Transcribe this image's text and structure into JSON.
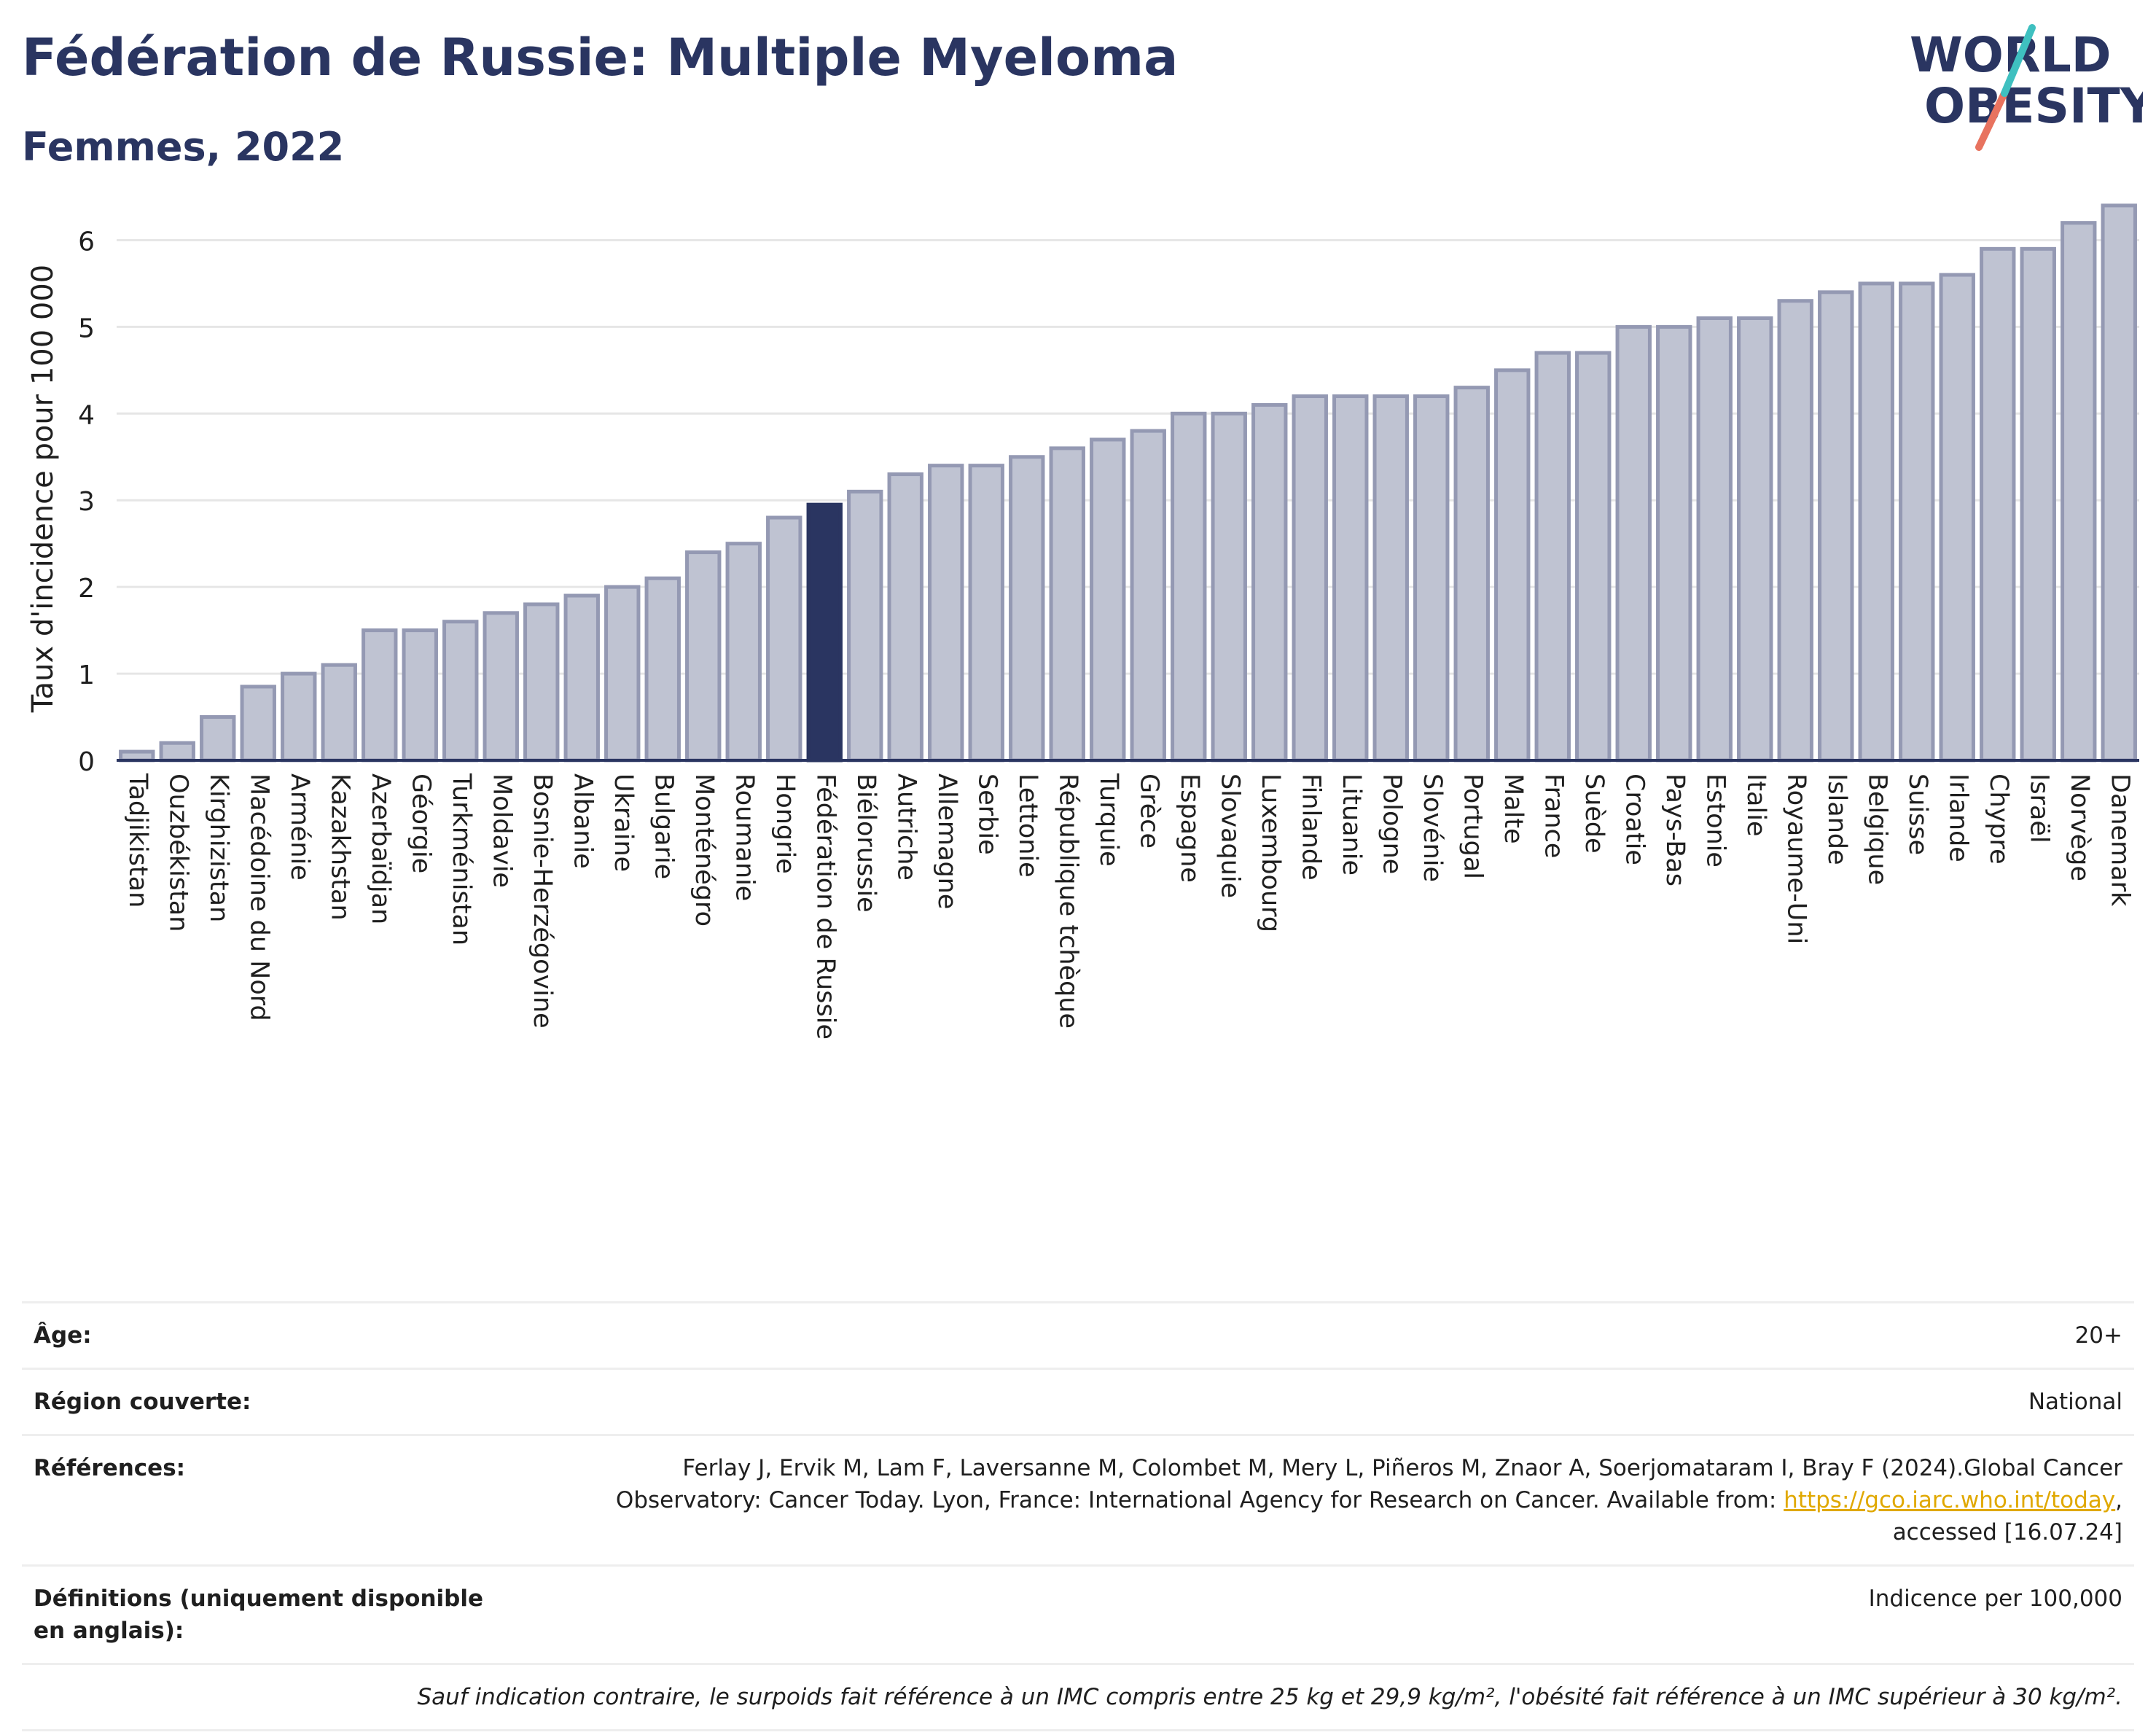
{
  "header": {
    "title": "Fédération de Russie: Multiple Myeloma",
    "subtitle": "Femmes, 2022"
  },
  "logo": {
    "line1": "WORLD",
    "line2": "OBESITY"
  },
  "colors": {
    "bar": "#bfc3d2",
    "bar_stroke": "#9499b3",
    "highlight": "#2a3561",
    "title": "#2a3561"
  },
  "chart_data": {
    "type": "bar",
    "ylabel": "Taux d'incidence pour 100 000",
    "xlabel": "",
    "ylim": [
      0,
      6.5
    ],
    "yticks": [
      0,
      1,
      2,
      3,
      4,
      5,
      6
    ],
    "grid": true,
    "highlight": "Fédération de Russie",
    "categories": [
      "Tadjikistan",
      "Ouzbékistan",
      "Kirghizistan",
      "Macédoine du Nord",
      "Arménie",
      "Kazakhstan",
      "Azerbaïdjan",
      "Géorgie",
      "Turkménistan",
      "Moldavie",
      "Bosnie-Herzégovine",
      "Albanie",
      "Ukraine",
      "Bulgarie",
      "Monténégro",
      "Roumanie",
      "Hongrie",
      "Fédération de Russie",
      "Biélorussie",
      "Autriche",
      "Allemagne",
      "Serbie",
      "Lettonie",
      "République tchèque",
      "Turquie",
      "Grèce",
      "Espagne",
      "Slovaquie",
      "Luxembourg",
      "Finlande",
      "Lituanie",
      "Pologne",
      "Slovénie",
      "Portugal",
      "Malte",
      "France",
      "Suède",
      "Croatie",
      "Pays-Bas",
      "Estonie",
      "Italie",
      "Royaume-Uni",
      "Islande",
      "Belgique",
      "Suisse",
      "Irlande",
      "Chypre",
      "Israël",
      "Norvège",
      "Danemark"
    ],
    "values": [
      0.1,
      0.2,
      0.5,
      0.85,
      1.0,
      1.1,
      1.5,
      1.5,
      1.6,
      1.7,
      1.8,
      1.9,
      2.0,
      2.1,
      2.4,
      2.5,
      2.8,
      2.95,
      3.1,
      3.3,
      3.4,
      3.4,
      3.5,
      3.6,
      3.7,
      3.8,
      4.0,
      4.0,
      4.1,
      4.2,
      4.2,
      4.2,
      4.2,
      4.3,
      4.5,
      4.7,
      4.7,
      5.0,
      5.0,
      5.1,
      5.1,
      5.3,
      5.4,
      5.5,
      5.5,
      5.6,
      5.9,
      5.9,
      6.2,
      6.4
    ]
  },
  "info": {
    "age_label": "Âge:",
    "age_value": "20+",
    "region_label": "Région couverte:",
    "region_value": "National",
    "ref_label": "Références:",
    "ref_line1": "Ferlay J, Ervik M, Lam F, Laversanne M, Colombet M, Mery L, Piñeros M, Znaor A, Soerjomataram I, Bray F (2024).Global Cancer",
    "ref_line2": "Observatory: Cancer Today. Lyon, France: International Agency for Research on Cancer. Available from: ",
    "ref_link": "https://gco.iarc.who.int/today",
    "ref_line2_end": ",",
    "ref_line3": "accessed [16.07.24]",
    "def_label": "Définitions (uniquement disponible en anglais):",
    "def_value": "Indicence per 100,000",
    "note": "Sauf indication contraire, le surpoids fait référence à un IMC compris entre 25 kg et 29,9 kg/m², l'obésité fait référence à un IMC supérieur à 30 kg/m²."
  }
}
